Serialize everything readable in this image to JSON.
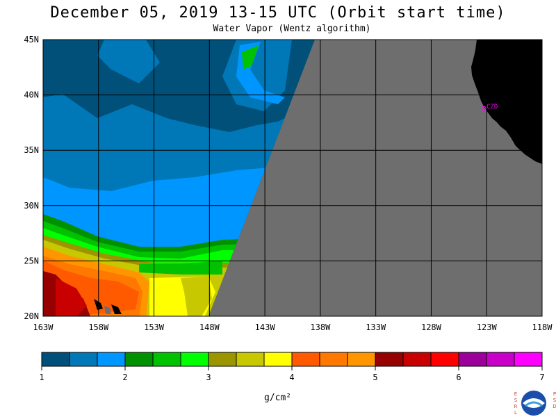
{
  "title": "December 05, 2019  13-15 UTC  (Orbit start time)",
  "subtitle": "Water Vapor (Wentz algorithm)",
  "lat_labels": [
    "45N",
    "40N",
    "35N",
    "30N",
    "25N",
    "20N"
  ],
  "lon_labels": [
    "163W",
    "158W",
    "153W",
    "148W",
    "143W",
    "138W",
    "133W",
    "128W",
    "123W",
    "118W"
  ],
  "station_label": "CZD",
  "colorbar": {
    "colors": [
      "#00507a",
      "#0078b8",
      "#0096ff",
      "#009100",
      "#00c200",
      "#00ff00",
      "#9b9600",
      "#c8c800",
      "#ffff00",
      "#ff5a00",
      "#ff7800",
      "#ff9600",
      "#960000",
      "#c80000",
      "#ff0000",
      "#9b009b",
      "#c800c8",
      "#ff00ff"
    ],
    "tick_labels": [
      "1",
      "2",
      "3",
      "4",
      "5",
      "6",
      "7"
    ],
    "units": "g/cm²"
  },
  "credit_left": [
    "E",
    "S",
    "R",
    "L"
  ],
  "credit_right": [
    "P",
    "S",
    "D"
  ],
  "logo_text": "NOAA",
  "map_colors": {
    "no_data": "#6e6e6e",
    "land": "#000000",
    "station": "#ff00ff"
  }
}
